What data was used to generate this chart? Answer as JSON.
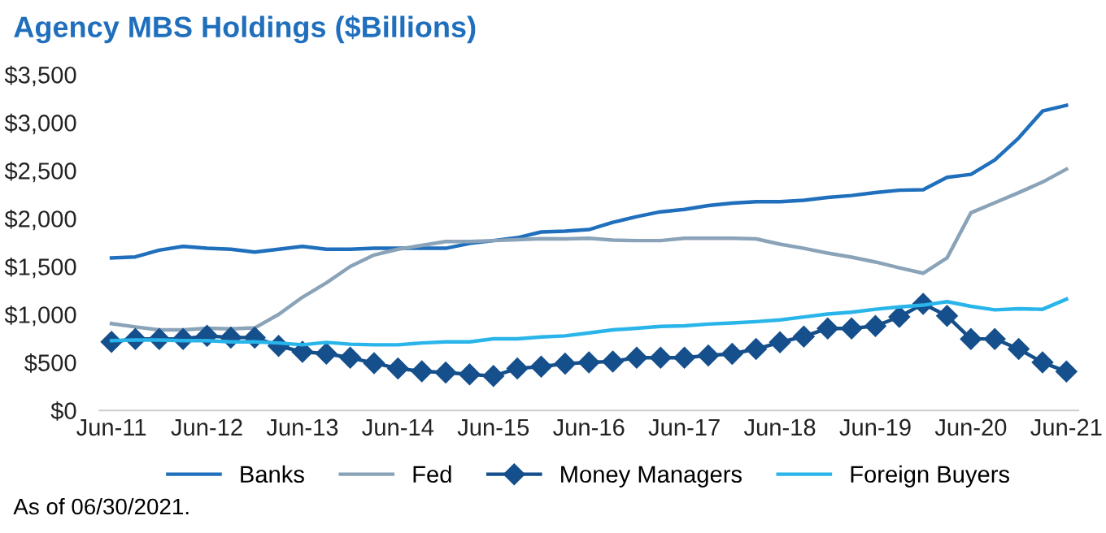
{
  "chart_data": {
    "type": "line",
    "title": "Agency MBS Holdings ($Billions)",
    "categories": [
      "Jun-11",
      null,
      null,
      null,
      "Jun-12",
      null,
      null,
      null,
      "Jun-13",
      null,
      null,
      null,
      "Jun-14",
      null,
      null,
      null,
      "Jun-15",
      null,
      null,
      null,
      "Jun-16",
      null,
      null,
      null,
      "Jun-17",
      null,
      null,
      null,
      "Jun-18",
      null,
      null,
      null,
      "Jun-19",
      null,
      null,
      null,
      "Jun-20",
      null,
      null,
      null,
      "Jun-21"
    ],
    "series": [
      {
        "name": "Banks",
        "color": "#1f6fbd",
        "marker": "none",
        "values": [
          1590,
          1600,
          1670,
          1710,
          1690,
          1680,
          1650,
          1680,
          1710,
          1680,
          1680,
          1690,
          1690,
          1690,
          1690,
          1740,
          1770,
          1800,
          1860,
          1868,
          1885,
          1960,
          2020,
          2070,
          2095,
          2135,
          2160,
          2175,
          2175,
          2190,
          2220,
          2240,
          2270,
          2295,
          2300,
          2430,
          2460,
          2610,
          2840,
          3120,
          3180
        ]
      },
      {
        "name": "Fed",
        "color": "#8aa3b8",
        "marker": "none",
        "values": [
          905,
          870,
          840,
          840,
          857,
          850,
          860,
          1000,
          1180,
          1330,
          1500,
          1620,
          1680,
          1720,
          1760,
          1760,
          1770,
          1780,
          1790,
          1788,
          1794,
          1775,
          1770,
          1770,
          1794,
          1794,
          1794,
          1788,
          1733,
          1690,
          1640,
          1597,
          1547,
          1486,
          1430,
          1590,
          2060,
          2165,
          2270,
          2380,
          2515
        ]
      },
      {
        "name": "Money Managers",
        "color": "#154f8c",
        "marker": "diamond",
        "values": [
          715,
          745,
          745,
          745,
          777,
          760,
          760,
          672,
          610,
          592,
          549,
          493,
          438,
          407,
          395,
          376,
          358,
          438,
          456,
          487,
          500,
          510,
          550,
          550,
          550,
          573,
          590,
          640,
          710,
          770,
          855,
          855,
          880,
          975,
          1110,
          985,
          745,
          745,
          640,
          500,
          405
        ]
      },
      {
        "name": "Foreign Buyers",
        "color": "#29b5ea",
        "marker": "none",
        "values": [
          727,
          734,
          734,
          727,
          727,
          715,
          715,
          703,
          684,
          709,
          690,
          684,
          684,
          703,
          715,
          715,
          746,
          746,
          765,
          777,
          808,
          839,
          857,
          876,
          882,
          900,
          912,
          925,
          943,
          974,
          1005,
          1023,
          1054,
          1079,
          1097,
          1134,
          1085,
          1048,
          1060,
          1054,
          1159
        ]
      }
    ],
    "ylim": [
      0,
      3500
    ],
    "yticks": [
      {
        "value": 0,
        "label": "$0"
      },
      {
        "value": 500,
        "label": "$500"
      },
      {
        "value": 1000,
        "label": "$1,000"
      },
      {
        "value": 1500,
        "label": "$1,500"
      },
      {
        "value": 2000,
        "label": "$2,000"
      },
      {
        "value": 2500,
        "label": "$2,500"
      },
      {
        "value": 3000,
        "label": "$3,000"
      },
      {
        "value": 3500,
        "label": "$3,500"
      }
    ],
    "grid": false,
    "legend": "bottom",
    "line_style": "solid",
    "annotations": [
      "As of 06/30/2021."
    ]
  }
}
